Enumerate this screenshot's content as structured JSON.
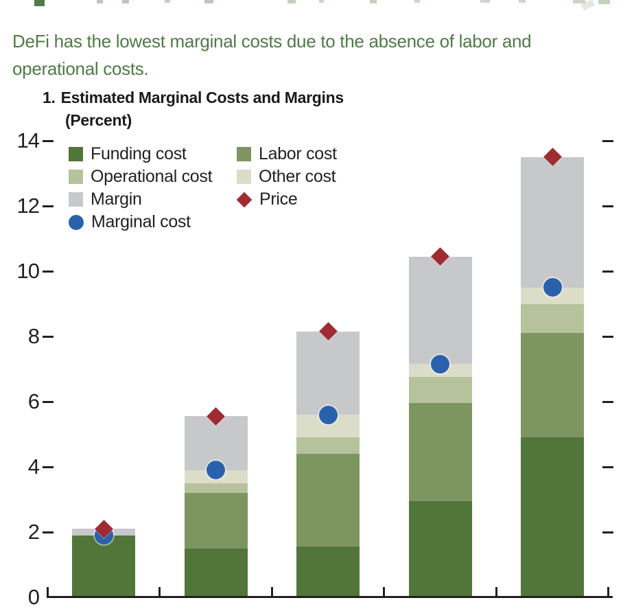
{
  "page": {
    "deck": "DeFi has the lowest marginal costs due to the absence of labor and operational costs.",
    "panel_number": "1.",
    "panel_title": "Estimated Marginal Costs and Margins",
    "panel_subtitle": "(Percent)"
  },
  "colors": {
    "funding": "#527539",
    "labor": "#7d9560",
    "operational": "#b6c29c",
    "other": "#dcddc9",
    "margin": "#c7c8ca",
    "price": "#a02b33",
    "marginal": "#2a61ac",
    "deck_green": "#4e7b46",
    "ink": "#231f20"
  },
  "legend": {
    "columns": [
      {
        "items": [
          {
            "label": "Funding cost",
            "marker": "square",
            "color": "funding"
          },
          {
            "label": "Operational cost",
            "marker": "square",
            "color": "operational"
          },
          {
            "label": "Margin",
            "marker": "square",
            "color": "margin"
          },
          {
            "label": "Marginal cost",
            "marker": "circle",
            "color": "marginal"
          }
        ]
      },
      {
        "items": [
          {
            "label": "Labor cost",
            "marker": "square",
            "color": "labor"
          },
          {
            "label": "Other cost",
            "marker": "square",
            "color": "other"
          },
          {
            "label": "Price",
            "marker": "diamond",
            "color": "price"
          }
        ]
      }
    ]
  },
  "chart_data": {
    "type": "bar",
    "subtype": "stacked-bars-with-point-markers",
    "title": "1. Estimated Marginal Costs and Margins",
    "ylabel": "Percent",
    "ylim": [
      0,
      14
    ],
    "yticks": [
      0,
      2,
      4,
      6,
      8,
      10,
      12,
      14
    ],
    "categories": [
      "",
      "",
      "",
      "",
      ""
    ],
    "categories_note": "x-axis category labels are cropped out of the screenshot",
    "series": [
      {
        "name": "Funding cost",
        "color_key": "funding",
        "values": [
          1.9,
          1.5,
          1.55,
          2.95,
          4.9
        ]
      },
      {
        "name": "Labor cost",
        "color_key": "labor",
        "values": [
          0,
          1.7,
          2.85,
          3.0,
          3.2
        ]
      },
      {
        "name": "Operational cost",
        "color_key": "operational",
        "values": [
          0,
          0.3,
          0.5,
          0.8,
          0.9
        ]
      },
      {
        "name": "Other cost",
        "color_key": "other",
        "values": [
          0,
          0.4,
          0.7,
          0.4,
          0.5
        ]
      },
      {
        "name": "Margin",
        "color_key": "margin",
        "values": [
          0.2,
          1.65,
          2.55,
          3.3,
          4.0
        ]
      }
    ],
    "markers": [
      {
        "name": "Marginal cost",
        "shape": "circle",
        "color_key": "marginal",
        "values": [
          1.9,
          3.9,
          5.6,
          7.15,
          9.5
        ]
      },
      {
        "name": "Price",
        "shape": "diamond",
        "color_key": "price",
        "values": [
          2.1,
          5.55,
          8.15,
          10.45,
          13.5
        ]
      }
    ],
    "bar_totals": [
      2.1,
      5.55,
      8.15,
      10.45,
      13.5
    ],
    "grid": "off",
    "legend_position": "inside-top-left"
  }
}
